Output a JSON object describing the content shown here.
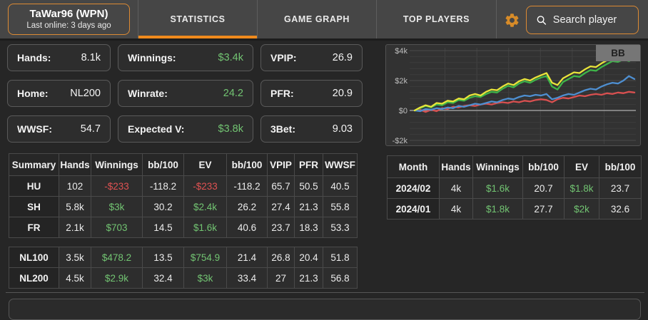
{
  "colors": {
    "accent_orange": "#dd8a33",
    "tab_underline_orange": "#ef8a1d",
    "positive_green": "#72c472",
    "negative_red": "#e05252"
  },
  "header": {
    "player_name": "TaWar96 (WPN)",
    "player_last_online": "Last online: 3 days ago",
    "tabs": [
      {
        "label": "STATISTICS",
        "active": true
      },
      {
        "label": "GAME GRAPH",
        "active": false
      },
      {
        "label": "TOP PLAYERS",
        "active": false
      }
    ],
    "search_placeholder": "Search player",
    "icons": {
      "gear": "gear-icon",
      "search": "magnifier-icon"
    }
  },
  "stats_cards": [
    {
      "label": "Hands:",
      "value": "8.1k",
      "green": false
    },
    {
      "label": "Winnings:",
      "value": "$3.4k",
      "green": true
    },
    {
      "label": "VPIP:",
      "value": "26.9",
      "green": false
    },
    {
      "label": "Home:",
      "value": "NL200",
      "green": false
    },
    {
      "label": "Winrate:",
      "value": "24.2",
      "green": true
    },
    {
      "label": "PFR:",
      "value": "20.9",
      "green": false
    },
    {
      "label": "WWSF:",
      "value": "54.7",
      "green": false
    },
    {
      "label": "Expected V:",
      "value": "$3.8k",
      "green": true
    },
    {
      "label": "3Bet:",
      "value": "9.03",
      "green": false
    }
  ],
  "summary_table": {
    "headers": [
      "Summary",
      "Hands",
      "Winnings",
      "bb/100",
      "EV",
      "bb/100",
      "VPIP",
      "PFR",
      "WWSF"
    ],
    "rows": [
      [
        "HU",
        "102",
        "-$233",
        "-118.2",
        "-$233",
        "-118.2",
        "65.7",
        "50.5",
        "40.5"
      ],
      [
        "SH",
        "5.8k",
        "$3k",
        "30.2",
        "$2.4k",
        "26.2",
        "27.4",
        "21.3",
        "55.8"
      ],
      [
        "FR",
        "2.1k",
        "$703",
        "14.5",
        "$1.6k",
        "40.6",
        "23.7",
        "18.3",
        "53.3"
      ]
    ],
    "stake_rows": [
      [
        "NL100",
        "3.5k",
        "$478.2",
        "13.5",
        "$754.9",
        "21.4",
        "26.8",
        "20.4",
        "51.8"
      ],
      [
        "NL200",
        "4.5k",
        "$2.9k",
        "32.4",
        "$3k",
        "33.4",
        "27",
        "21.3",
        "56.8"
      ]
    ]
  },
  "month_table": {
    "headers": [
      "Month",
      "Hands",
      "Winnings",
      "bb/100",
      "EV",
      "bb/100"
    ],
    "rows": [
      [
        "2024/02",
        "4k",
        "$1.6k",
        "20.7",
        "$1.8k",
        "23.7"
      ],
      [
        "2024/01",
        "4k",
        "$1.8k",
        "27.7",
        "$2k",
        "32.6"
      ]
    ]
  },
  "chart_data": {
    "type": "line",
    "title": "",
    "xlabel": "",
    "ylabel": "",
    "unit_toggle": "BB",
    "y_ticks": [
      "$4k",
      "$2k",
      "$0",
      "-$2k"
    ],
    "y_tick_values": [
      4000,
      2000,
      0,
      -2000
    ],
    "ylim_dollars": [
      -2000,
      4000
    ],
    "grid": true,
    "legend_position": "top-right",
    "series": [
      {
        "name": "red-line",
        "color": "#d95050",
        "values_k": [
          0,
          0.05,
          -0.1,
          0.05,
          -0.05,
          0.15,
          0.1,
          0.25,
          0.2,
          0.3,
          0.35,
          0.3,
          0.4,
          0.45,
          0.4,
          0.5,
          0.55,
          0.5,
          0.6,
          0.55,
          0.65,
          0.6,
          0.7,
          0.75,
          0.7,
          0.55,
          0.75,
          0.85,
          0.8,
          0.9,
          1.0,
          0.95,
          1.05,
          1.1,
          1.05,
          1.15,
          1.1,
          1.2,
          1.15,
          1.25,
          1.2
        ]
      },
      {
        "name": "blue-line",
        "color": "#4e8fd1",
        "values_k": [
          0,
          -0.05,
          0.1,
          0.05,
          0.15,
          0.1,
          0.2,
          0.15,
          0.3,
          0.25,
          0.35,
          0.45,
          0.4,
          0.5,
          0.6,
          0.55,
          0.7,
          0.8,
          0.75,
          0.9,
          1.0,
          0.95,
          1.05,
          1.0,
          1.1,
          0.75,
          0.85,
          1.0,
          1.1,
          1.05,
          1.2,
          1.35,
          1.45,
          1.4,
          1.6,
          1.75,
          1.85,
          1.8,
          2.0,
          2.3,
          2.1
        ]
      },
      {
        "name": "green-line",
        "color": "#3eb549",
        "values_k": [
          0,
          0.15,
          0.3,
          0.2,
          0.4,
          0.35,
          0.55,
          0.5,
          0.7,
          0.65,
          0.85,
          0.95,
          0.9,
          1.1,
          1.25,
          1.2,
          1.45,
          1.65,
          1.55,
          1.8,
          1.95,
          1.85,
          2.05,
          2.2,
          2.3,
          1.6,
          1.4,
          1.9,
          2.1,
          2.3,
          2.25,
          2.5,
          2.7,
          2.65,
          2.9,
          3.1,
          3.3,
          3.25,
          3.4,
          3.3,
          3.45
        ]
      },
      {
        "name": "yellow-line",
        "color": "#e9e53a",
        "values_k": [
          0,
          0.2,
          0.35,
          0.25,
          0.5,
          0.45,
          0.65,
          0.6,
          0.8,
          0.75,
          1.0,
          1.1,
          1.0,
          1.25,
          1.4,
          1.35,
          1.6,
          1.8,
          1.7,
          1.95,
          2.1,
          2.0,
          2.2,
          2.35,
          2.5,
          1.85,
          1.7,
          2.15,
          2.35,
          2.55,
          2.5,
          2.75,
          2.95,
          2.9,
          3.15,
          3.35,
          3.55,
          3.5,
          3.65,
          3.6,
          3.8
        ]
      }
    ]
  }
}
